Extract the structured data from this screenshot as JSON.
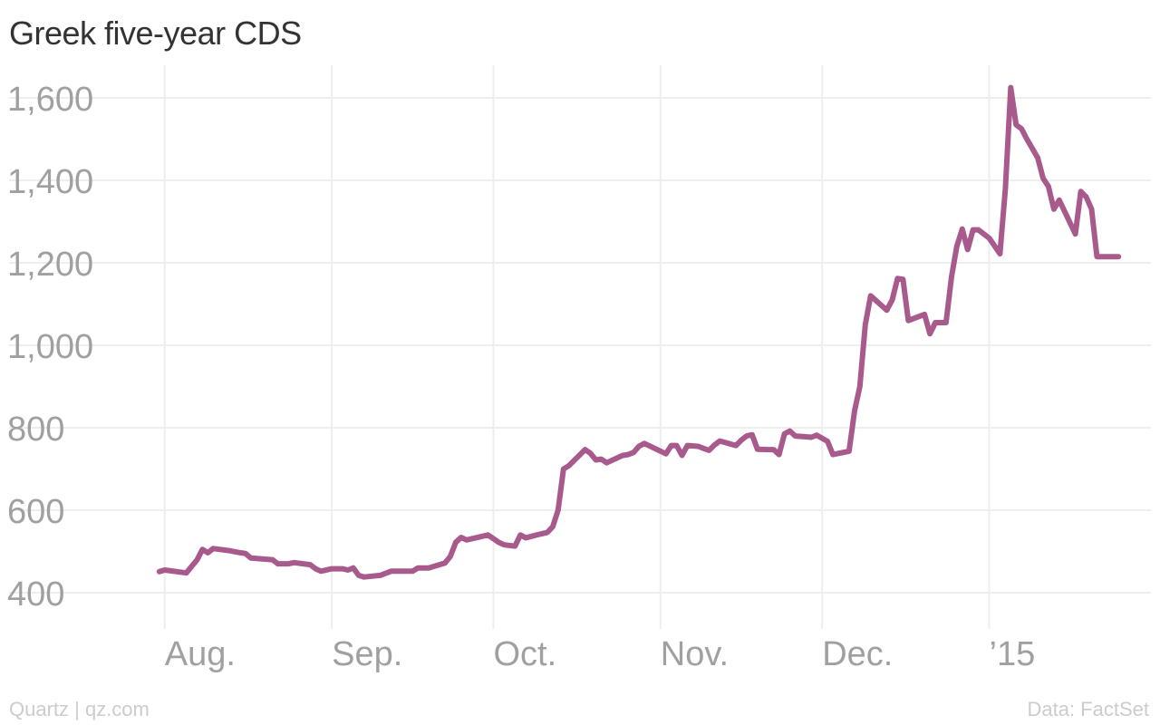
{
  "chart_data": {
    "type": "line",
    "title": "Greek five-year CDS",
    "xlabel": "",
    "ylabel": "",
    "ylim": [
      320,
      1680
    ],
    "yticks": [
      400,
      600,
      800,
      1000,
      1200,
      1400,
      1600
    ],
    "ytick_labels": [
      "400",
      "600",
      "800",
      "1,000",
      "1,200",
      "1,400",
      "1,600"
    ],
    "xlim": [
      "2014-07-28",
      "2015-01-29"
    ],
    "xticks": [
      "2014-08-01",
      "2014-09-01",
      "2014-10-01",
      "2014-11-01",
      "2014-12-01",
      "2015-01-01"
    ],
    "xtick_labels": [
      "Aug.",
      "Sep.",
      "Oct.",
      "Nov.",
      "Dec.",
      "’15"
    ],
    "grid": true,
    "color": "#a85a8c",
    "series": [
      {
        "points": [
          [
            "2014-07-31",
            451
          ],
          [
            "2014-08-01",
            455
          ],
          [
            "2014-08-05",
            448
          ],
          [
            "2014-08-07",
            480
          ],
          [
            "2014-08-08",
            505
          ],
          [
            "2014-08-09",
            497
          ],
          [
            "2014-08-10",
            507
          ],
          [
            "2014-08-13",
            502
          ],
          [
            "2014-08-15",
            497
          ],
          [
            "2014-08-16",
            495
          ],
          [
            "2014-08-17",
            484
          ],
          [
            "2014-08-21",
            480
          ],
          [
            "2014-08-22",
            470
          ],
          [
            "2014-08-24",
            470
          ],
          [
            "2014-08-25",
            473
          ],
          [
            "2014-08-28",
            468
          ],
          [
            "2014-08-29",
            458
          ],
          [
            "2014-08-30",
            452
          ],
          [
            "2014-09-01",
            458
          ],
          [
            "2014-09-03",
            458
          ],
          [
            "2014-09-04",
            455
          ],
          [
            "2014-09-05",
            460
          ],
          [
            "2014-09-06",
            442
          ],
          [
            "2014-09-07",
            438
          ],
          [
            "2014-09-10",
            442
          ],
          [
            "2014-09-12",
            452
          ],
          [
            "2014-09-15",
            452
          ],
          [
            "2014-09-16",
            452
          ],
          [
            "2014-09-17",
            460
          ],
          [
            "2014-09-19",
            460
          ],
          [
            "2014-09-22",
            472
          ],
          [
            "2014-09-23",
            488
          ],
          [
            "2014-09-24",
            522
          ],
          [
            "2014-09-25",
            534
          ],
          [
            "2014-09-26",
            528
          ],
          [
            "2014-09-30",
            540
          ],
          [
            "2014-10-02",
            522
          ],
          [
            "2014-10-03",
            516
          ],
          [
            "2014-10-05",
            513
          ],
          [
            "2014-10-06",
            540
          ],
          [
            "2014-10-07",
            533
          ],
          [
            "2014-10-09",
            540
          ],
          [
            "2014-10-11",
            546
          ],
          [
            "2014-10-12",
            560
          ],
          [
            "2014-10-13",
            600
          ],
          [
            "2014-10-14",
            700
          ],
          [
            "2014-10-15",
            708
          ],
          [
            "2014-10-18",
            747
          ],
          [
            "2014-10-19",
            738
          ],
          [
            "2014-10-20",
            722
          ],
          [
            "2014-10-21",
            724
          ],
          [
            "2014-10-22",
            715
          ],
          [
            "2014-10-24",
            727
          ],
          [
            "2014-10-25",
            733
          ],
          [
            "2014-10-26",
            735
          ],
          [
            "2014-10-27",
            740
          ],
          [
            "2014-10-28",
            755
          ],
          [
            "2014-10-29",
            762
          ],
          [
            "2014-11-02",
            737
          ],
          [
            "2014-11-03",
            757
          ],
          [
            "2014-11-04",
            757
          ],
          [
            "2014-11-05",
            733
          ],
          [
            "2014-11-06",
            757
          ],
          [
            "2014-11-08",
            755
          ],
          [
            "2014-11-09",
            750
          ],
          [
            "2014-11-10",
            745
          ],
          [
            "2014-11-11",
            758
          ],
          [
            "2014-11-12",
            768
          ],
          [
            "2014-11-15",
            757
          ],
          [
            "2014-11-16",
            770
          ],
          [
            "2014-11-17",
            780
          ],
          [
            "2014-11-18",
            783
          ],
          [
            "2014-11-19",
            748
          ],
          [
            "2014-11-21",
            747
          ],
          [
            "2014-11-22",
            747
          ],
          [
            "2014-11-23",
            735
          ],
          [
            "2014-11-24",
            785
          ],
          [
            "2014-11-25",
            792
          ],
          [
            "2014-11-26",
            780
          ],
          [
            "2014-11-28",
            778
          ],
          [
            "2014-11-29",
            777
          ],
          [
            "2014-11-30",
            782
          ],
          [
            "2014-12-02",
            767
          ],
          [
            "2014-12-03",
            735
          ],
          [
            "2014-12-06",
            743
          ],
          [
            "2014-12-07",
            840
          ],
          [
            "2014-12-08",
            900
          ],
          [
            "2014-12-09",
            1050
          ],
          [
            "2014-12-10",
            1120
          ],
          [
            "2014-12-13",
            1085
          ],
          [
            "2014-12-14",
            1110
          ],
          [
            "2014-12-15",
            1162
          ],
          [
            "2014-12-16",
            1160
          ],
          [
            "2014-12-17",
            1060
          ],
          [
            "2014-12-20",
            1075
          ],
          [
            "2014-12-21",
            1028
          ],
          [
            "2014-12-22",
            1055
          ],
          [
            "2014-12-24",
            1055
          ],
          [
            "2014-12-25",
            1165
          ],
          [
            "2014-12-26",
            1240
          ],
          [
            "2014-12-27",
            1282
          ],
          [
            "2014-12-28",
            1232
          ],
          [
            "2014-12-29",
            1280
          ],
          [
            "2014-12-30",
            1280
          ],
          [
            "2015-01-01",
            1260
          ],
          [
            "2015-01-03",
            1222
          ],
          [
            "2015-01-04",
            1380
          ],
          [
            "2015-01-05",
            1625
          ],
          [
            "2015-01-06",
            1535
          ],
          [
            "2015-01-07",
            1525
          ],
          [
            "2015-01-08",
            1500
          ],
          [
            "2015-01-10",
            1455
          ],
          [
            "2015-01-11",
            1405
          ],
          [
            "2015-01-12",
            1385
          ],
          [
            "2015-01-13",
            1330
          ],
          [
            "2015-01-14",
            1352
          ],
          [
            "2015-01-17",
            1270
          ],
          [
            "2015-01-18",
            1373
          ],
          [
            "2015-01-19",
            1360
          ],
          [
            "2015-01-20",
            1330
          ],
          [
            "2015-01-21",
            1215
          ],
          [
            "2015-01-25",
            1215
          ]
        ]
      }
    ]
  },
  "footer": {
    "source_left": "Quartz | qz.com",
    "source_right": "Data: FactSet"
  }
}
